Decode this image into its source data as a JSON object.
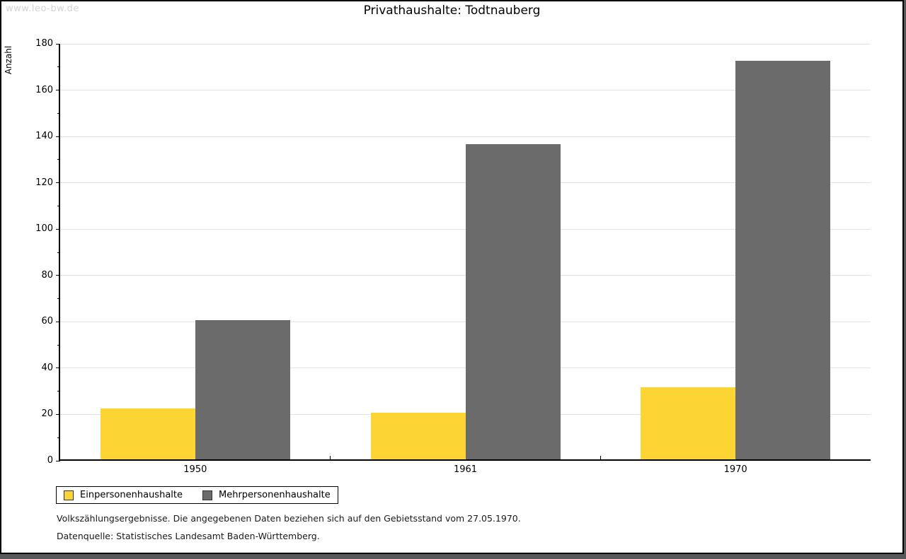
{
  "watermark": "www.leo-bw.de",
  "title": "Privathaushalte: Todtnauberg",
  "chart_data": {
    "type": "bar",
    "title": "Privathaushalte: Todtnauberg",
    "ylabel": "Anzahl",
    "xlabel": "",
    "ylim": [
      0,
      180
    ],
    "y_major_step": 20,
    "y_minor_step": 10,
    "grid": true,
    "legend_position": "bottom-left",
    "categories": [
      "1950",
      "1961",
      "1970"
    ],
    "series": [
      {
        "name": "Einpersonenhaushalte",
        "color": "#FCD535",
        "values": [
          22,
          20,
          31
        ]
      },
      {
        "name": "Mehrpersonenhaushalte",
        "color": "#6B6B6B",
        "values": [
          60,
          136,
          172
        ]
      }
    ]
  },
  "footnotes": {
    "line1": "Volkszählungsergebnisse. Die angegebenen Daten beziehen sich auf den Gebietsstand vom 27.05.1970.",
    "line2": "Datenquelle: Statistisches Landesamt Baden-Württemberg."
  },
  "colors": {
    "grid": "#E2E2E2",
    "axis": "#000000",
    "watermark": "#D4D4D4",
    "frame_shadow": "#58585A"
  }
}
